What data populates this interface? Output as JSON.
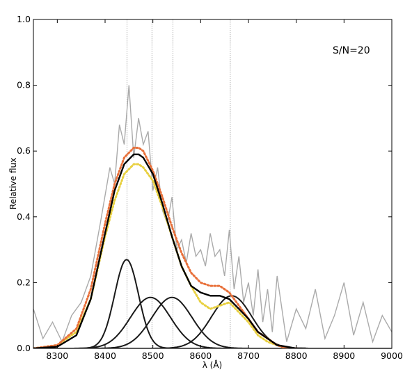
{
  "chart_data": {
    "type": "line",
    "title": "",
    "xlabel": "λ (Å)",
    "ylabel": "Relative flux",
    "xlim": [
      8250,
      9000
    ],
    "ylim": [
      0.0,
      1.0
    ],
    "xticks": [
      8300,
      8400,
      8500,
      8600,
      8700,
      8800,
      8900,
      9000
    ],
    "yticks": [
      0.0,
      0.2,
      0.4,
      0.6,
      0.8,
      1.0
    ],
    "ytick_labels": [
      "0.0",
      "0.2",
      "0.4",
      "0.6",
      "0.8",
      "1.0"
    ],
    "grid": false,
    "legend": "none",
    "annotation": "S/N=20",
    "reference_lines_x": [
      8446,
      8498,
      8542,
      8662
    ],
    "colors": {
      "noisy": "#aaaaaa",
      "model": "#000000",
      "orange_dotted": "#e8703a",
      "yellow_dotted": "#e8d040",
      "components": "#1a1a1a",
      "reference": "#9a9a9a"
    },
    "series": [
      {
        "style": "noisy-gray",
        "x": [
          8250,
          8270,
          8290,
          8310,
          8330,
          8350,
          8370,
          8390,
          8410,
          8420,
          8430,
          8440,
          8450,
          8460,
          8470,
          8480,
          8490,
          8500,
          8510,
          8520,
          8530,
          8540,
          8550,
          8560,
          8570,
          8580,
          8590,
          8600,
          8610,
          8620,
          8630,
          8640,
          8650,
          8660,
          8670,
          8680,
          8690,
          8700,
          8710,
          8720,
          8730,
          8740,
          8750,
          8760,
          8780,
          8800,
          8820,
          8840,
          8860,
          8880,
          8900,
          8920,
          8940,
          8960,
          8980,
          9000
        ],
        "y": [
          0.12,
          0.03,
          0.08,
          0.02,
          0.1,
          0.14,
          0.22,
          0.38,
          0.55,
          0.5,
          0.68,
          0.62,
          0.8,
          0.58,
          0.7,
          0.62,
          0.66,
          0.48,
          0.55,
          0.42,
          0.38,
          0.46,
          0.3,
          0.33,
          0.26,
          0.35,
          0.28,
          0.3,
          0.25,
          0.35,
          0.28,
          0.3,
          0.22,
          0.36,
          0.18,
          0.28,
          0.14,
          0.2,
          0.1,
          0.24,
          0.08,
          0.18,
          0.05,
          0.22,
          0.02,
          0.12,
          0.06,
          0.18,
          0.03,
          0.1,
          0.2,
          0.04,
          0.14,
          0.02,
          0.1,
          0.05
        ]
      },
      {
        "style": "orange-dotted",
        "x": [
          8250,
          8300,
          8340,
          8370,
          8400,
          8420,
          8440,
          8460,
          8470,
          8480,
          8500,
          8520,
          8540,
          8560,
          8580,
          8600,
          8620,
          8640,
          8660,
          8680,
          8700,
          8720,
          8740,
          8760,
          8780,
          8800
        ],
        "y": [
          0.0,
          0.01,
          0.06,
          0.18,
          0.38,
          0.5,
          0.58,
          0.61,
          0.61,
          0.6,
          0.54,
          0.46,
          0.37,
          0.29,
          0.23,
          0.2,
          0.19,
          0.19,
          0.17,
          0.13,
          0.09,
          0.05,
          0.03,
          0.01,
          0.0,
          0.0
        ]
      },
      {
        "style": "yellow-dotted",
        "x": [
          8250,
          8300,
          8340,
          8370,
          8400,
          8420,
          8440,
          8460,
          8470,
          8480,
          8500,
          8520,
          8540,
          8560,
          8580,
          8600,
          8620,
          8640,
          8660,
          8680,
          8700,
          8720,
          8740,
          8760,
          8780,
          8800
        ],
        "y": [
          0.0,
          0.01,
          0.05,
          0.15,
          0.34,
          0.45,
          0.53,
          0.56,
          0.56,
          0.55,
          0.51,
          0.43,
          0.34,
          0.25,
          0.19,
          0.14,
          0.12,
          0.13,
          0.14,
          0.11,
          0.08,
          0.04,
          0.02,
          0.01,
          0.0,
          0.0
        ]
      },
      {
        "style": "black-total",
        "x": [
          8250,
          8300,
          8340,
          8370,
          8400,
          8420,
          8440,
          8460,
          8470,
          8480,
          8500,
          8520,
          8540,
          8560,
          8580,
          8600,
          8620,
          8640,
          8660,
          8680,
          8700,
          8720,
          8740,
          8760,
          8780,
          8800,
          8820
        ],
        "y": [
          0.0,
          0.005,
          0.04,
          0.15,
          0.35,
          0.48,
          0.56,
          0.59,
          0.59,
          0.58,
          0.53,
          0.44,
          0.34,
          0.25,
          0.19,
          0.17,
          0.16,
          0.16,
          0.15,
          0.12,
          0.09,
          0.05,
          0.03,
          0.01,
          0.005,
          0.0,
          0.0
        ]
      }
    ],
    "components": [
      {
        "center": 8445,
        "amplitude": 0.27,
        "sigma": 25
      },
      {
        "center": 8495,
        "amplitude": 0.155,
        "sigma": 42
      },
      {
        "center": 8540,
        "amplitude": 0.155,
        "sigma": 42
      },
      {
        "center": 8665,
        "amplitude": 0.16,
        "sigma": 42
      }
    ]
  }
}
